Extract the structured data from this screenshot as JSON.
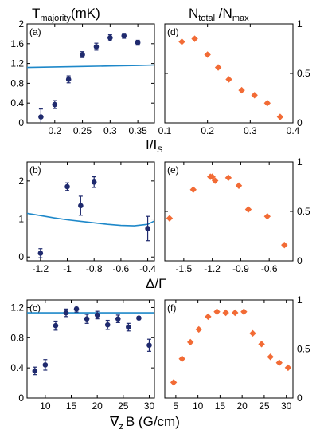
{
  "headers": {
    "left": {
      "main": "T",
      "sub": "majority",
      "unit": "(mK)"
    },
    "right": {
      "main": "N",
      "sub": "total",
      "sep": " /N",
      "sub2": "max"
    }
  },
  "row_xlabels": [
    {
      "main": "I/I",
      "sub": "S"
    },
    {
      "main": "Δ/Γ"
    },
    {
      "main": "∇",
      "sub": "z",
      "tail": "B (G/cm)"
    }
  ],
  "colors": {
    "dots": "#1f2a6e",
    "curve": "#1e88c9",
    "diamonds": "#f26b35"
  },
  "chart_data": [
    {
      "panel_label": "(a)",
      "type": "scatter",
      "marker": "circle-errorbar",
      "xlim": [
        0.15,
        0.38
      ],
      "ylim": [
        0,
        2.0
      ],
      "xticks": [
        0.2,
        0.25,
        0.3,
        0.35
      ],
      "xtick_labels": [
        "0.2",
        "0.25",
        "0.3",
        "0.35"
      ],
      "yticks": [
        0,
        0.4,
        0.8,
        1.2,
        1.6,
        2.0
      ],
      "ytick_labels": [
        "0",
        "0.4",
        "0.8",
        "1.2",
        "1.6",
        "2"
      ],
      "x": [
        0.175,
        0.2,
        0.225,
        0.25,
        0.275,
        0.3,
        0.325,
        0.35
      ],
      "y": [
        0.12,
        0.37,
        0.88,
        1.38,
        1.54,
        1.72,
        1.76,
        1.62
      ],
      "err": [
        0.16,
        0.08,
        0.07,
        0.06,
        0.07,
        0.06,
        0.05,
        0.05
      ],
      "curve": {
        "x": [
          0.15,
          0.2,
          0.25,
          0.3,
          0.35,
          0.38
        ],
        "y": [
          1.12,
          1.13,
          1.14,
          1.15,
          1.16,
          1.17
        ]
      }
    },
    {
      "panel_label": "(d)",
      "type": "scatter",
      "marker": "diamond",
      "xlim": [
        0.1,
        0.4
      ],
      "ylim": [
        0,
        1.0
      ],
      "yaxis_side": "right",
      "xticks": [
        0.1,
        0.2,
        0.3,
        0.4
      ],
      "xtick_labels": [
        "0.1",
        "0.2",
        "0.3",
        "0.4"
      ],
      "yticks": [
        0,
        0.5,
        1.0
      ],
      "ytick_labels": [
        "0",
        "0.5",
        "1"
      ],
      "x": [
        0.14,
        0.17,
        0.2,
        0.225,
        0.25,
        0.28,
        0.31,
        0.34,
        0.37
      ],
      "y": [
        0.82,
        0.85,
        0.69,
        0.56,
        0.44,
        0.33,
        0.28,
        0.2,
        0.06
      ]
    },
    {
      "panel_label": "(b)",
      "type": "scatter",
      "marker": "circle-errorbar",
      "xlim": [
        -1.3,
        -0.35
      ],
      "ylim": [
        -0.1,
        2.5
      ],
      "xticks": [
        -1.2,
        -1.0,
        -0.8,
        -0.6,
        -0.4
      ],
      "xtick_labels": [
        "-1.2",
        "-1",
        "-0.8",
        "-0.6",
        "-0.4"
      ],
      "yticks": [
        0,
        1,
        2
      ],
      "ytick_labels": [
        "0",
        "1",
        "2"
      ],
      "x": [
        -1.2,
        -1.0,
        -0.9,
        -0.8,
        -0.4
      ],
      "y": [
        0.1,
        1.85,
        1.35,
        1.97,
        0.75
      ],
      "err": [
        0.12,
        0.1,
        0.25,
        0.14,
        0.32
      ],
      "curve": {
        "x": [
          -1.3,
          -1.2,
          -1.1,
          -1.0,
          -0.9,
          -0.8,
          -0.7,
          -0.6,
          -0.5,
          -0.4,
          -0.35
        ],
        "y": [
          1.15,
          1.09,
          1.03,
          0.98,
          0.94,
          0.9,
          0.86,
          0.83,
          0.82,
          0.86,
          0.95
        ]
      }
    },
    {
      "panel_label": "(e)",
      "type": "scatter",
      "marker": "diamond",
      "xlim": [
        -1.7,
        -0.35
      ],
      "ylim": [
        0,
        1.0
      ],
      "yaxis_side": "right",
      "xticks": [
        -1.5,
        -1.2,
        -0.9,
        -0.6
      ],
      "xtick_labels": [
        "-1.5",
        "-1.2",
        "-0.9",
        "-0.6"
      ],
      "yticks": [
        0,
        0.5,
        1.0
      ],
      "ytick_labels": [
        "0",
        "0.5",
        "1"
      ],
      "x": [
        -1.65,
        -1.4,
        -1.22,
        -1.2,
        -1.17,
        -1.03,
        -0.92,
        -0.82,
        -0.62,
        -0.44
      ],
      "y": [
        0.43,
        0.72,
        0.85,
        0.85,
        0.81,
        0.84,
        0.76,
        0.52,
        0.45,
        0.16
      ]
    },
    {
      "panel_label": "(c)",
      "type": "scatter",
      "marker": "circle-errorbar",
      "xlim": [
        6.5,
        31
      ],
      "ylim": [
        0,
        1.3
      ],
      "xticks": [
        10,
        15,
        20,
        25,
        30
      ],
      "xtick_labels": [
        "10",
        "15",
        "20",
        "25",
        "30"
      ],
      "yticks": [
        0,
        0.4,
        0.8,
        1.2
      ],
      "ytick_labels": [
        "0",
        "0.4",
        "0.8",
        "1.2"
      ],
      "x": [
        8,
        10,
        12,
        14,
        16,
        18,
        20,
        22,
        24,
        26,
        28,
        30
      ],
      "y": [
        0.36,
        0.44,
        0.96,
        1.13,
        1.18,
        1.05,
        1.1,
        0.97,
        1.05,
        0.94,
        1.06,
        0.7
      ],
      "err": [
        0.05,
        0.07,
        0.06,
        0.05,
        0.04,
        0.06,
        0.05,
        0.06,
        0.05,
        0.05,
        0.02,
        0.08
      ],
      "curve": {
        "x": [
          6.5,
          31
        ],
        "y": [
          1.13,
          1.13
        ]
      }
    },
    {
      "panel_label": "(f)",
      "type": "scatter",
      "marker": "diamond",
      "xlim": [
        2.5,
        31.5
      ],
      "ylim": [
        0,
        1.0
      ],
      "yaxis_side": "right",
      "xticks": [
        5,
        10,
        15,
        20,
        25,
        30
      ],
      "xtick_labels": [
        "5",
        "10",
        "15",
        "20",
        "25",
        "30"
      ],
      "yticks": [
        0,
        0.5,
        1.0
      ],
      "ytick_labels": [
        "0",
        "0.5",
        "1"
      ],
      "x": [
        4.5,
        6.4,
        8.3,
        10.2,
        12.3,
        14.3,
        16.3,
        18.4,
        20.4,
        22.4,
        24.4,
        26.4,
        28.4,
        30.4
      ],
      "y": [
        0.16,
        0.4,
        0.57,
        0.7,
        0.83,
        0.88,
        0.87,
        0.87,
        0.88,
        0.66,
        0.55,
        0.42,
        0.36,
        0.31
      ]
    }
  ]
}
